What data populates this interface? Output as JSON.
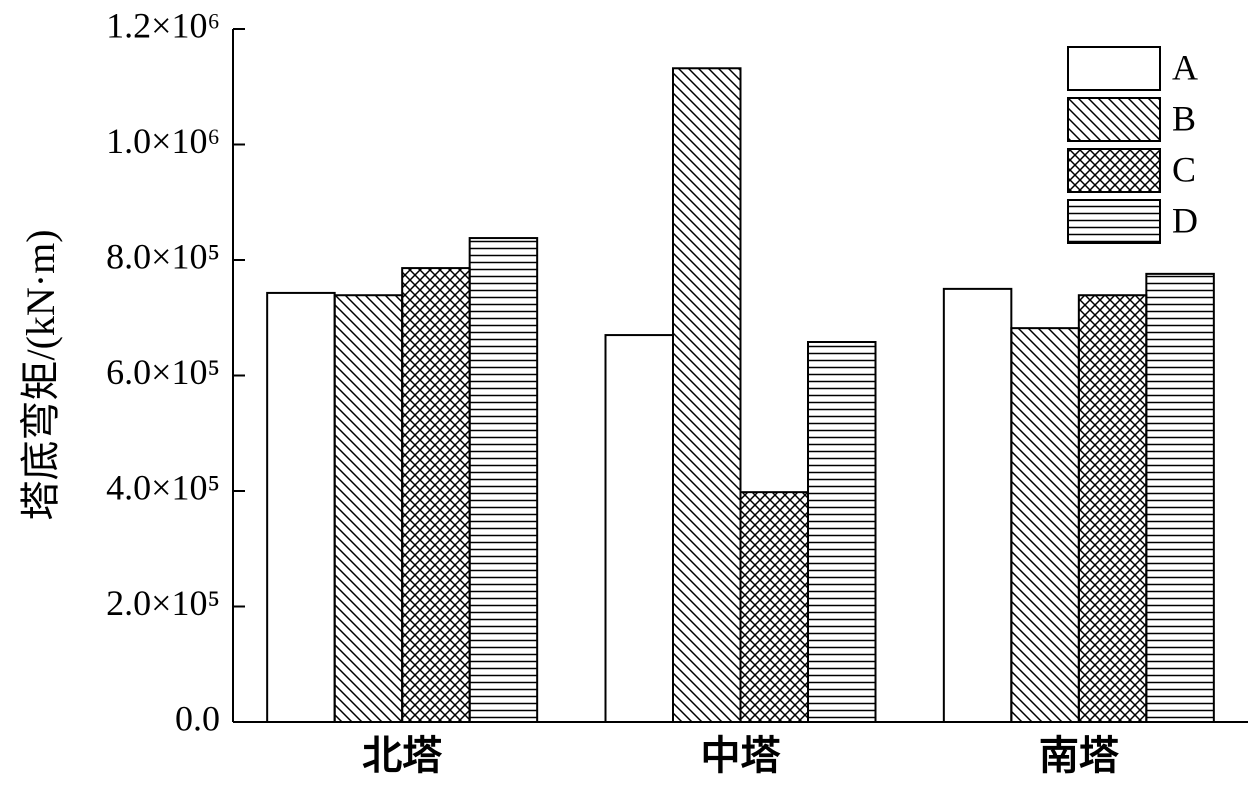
{
  "chart_data": {
    "type": "bar",
    "ylabel": "塔底弯矩/(kN·m)",
    "categories": [
      "北塔",
      "中塔",
      "南塔"
    ],
    "series": [
      {
        "name": "A",
        "color": "#000000",
        "pattern": "none",
        "values": [
          743000,
          670000,
          750000
        ]
      },
      {
        "name": "B",
        "color": "#000000",
        "pattern": "diagonal",
        "values": [
          739000,
          1132000,
          682000
        ]
      },
      {
        "name": "C",
        "color": "#000000",
        "pattern": "crosshatch",
        "values": [
          786000,
          398000,
          739000
        ]
      },
      {
        "name": "D",
        "color": "#000000",
        "pattern": "horizontal",
        "values": [
          838000,
          658000,
          776000
        ]
      }
    ],
    "ylim": [
      0,
      1200000
    ],
    "yticks": [
      {
        "value": 0,
        "label": "0.0"
      },
      {
        "value": 200000,
        "label": "2.0×10⁵"
      },
      {
        "value": 400000,
        "label": "4.0×10⁵"
      },
      {
        "value": 600000,
        "label": "6.0×10⁵"
      },
      {
        "value": 800000,
        "label": "8.0×10⁵"
      },
      {
        "value": 1000000,
        "label": "1.0×10⁶"
      },
      {
        "value": 1200000,
        "label": "1.2×10⁶"
      }
    ],
    "legend": "top-right"
  }
}
